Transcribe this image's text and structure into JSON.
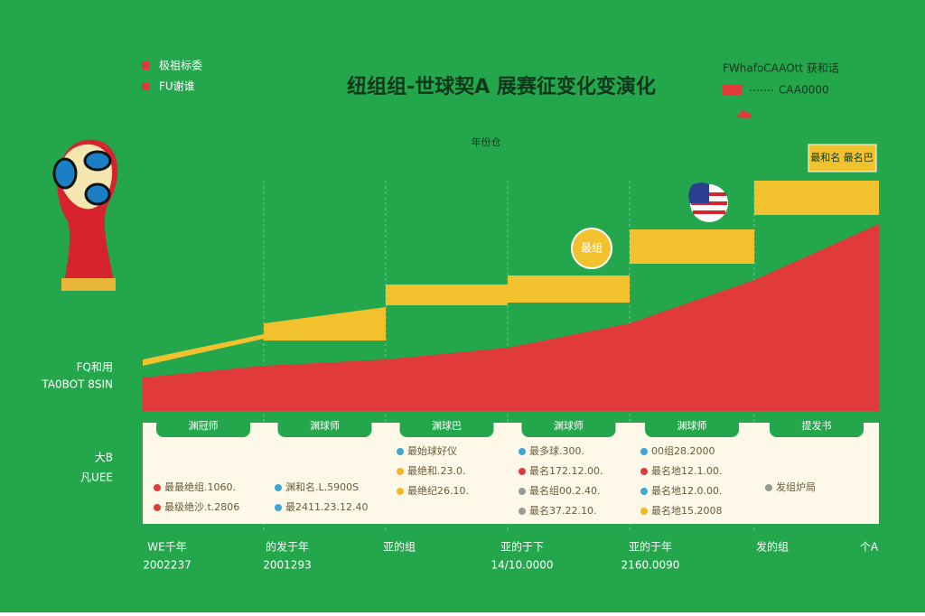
{
  "header": {
    "title": "纽组组-世球契A 展赛征变化变演化",
    "legend": [
      "极祖标委",
      "FU谢谁"
    ],
    "right_legend": {
      "title": "FWhafoCAAOtt 获和话",
      "value": "CAA0000"
    }
  },
  "axis_label": "年份仓",
  "left_labels": [
    "FQ和用",
    "TA0BOT 8SIN"
  ],
  "table_side": [
    "大B",
    "凡UEE"
  ],
  "badge": "最和名 最名巴",
  "coin": "最组",
  "columns": [
    {
      "header": "渊冠师",
      "items": [
        {
          "text": "最最绝组.1060.",
          "color": "#e03a3a"
        },
        {
          "text": "最级绝沙.t.2806",
          "color": "#e03a3a"
        }
      ]
    },
    {
      "header": "渊球师",
      "items": [
        {
          "text": "渊和名.L.5900S",
          "color": "#3ea6d8"
        },
        {
          "text": "最2411.23.12.40",
          "color": "#3ea6d8"
        }
      ]
    },
    {
      "header": "渊球巴",
      "items": [
        {
          "text": "最始球好仪",
          "color": "#3ea6d8"
        },
        {
          "text": "最绝和.23.0.",
          "color": "#f2b824"
        },
        {
          "text": "最绝纪26.10.",
          "color": "#f2b824"
        }
      ]
    },
    {
      "header": "渊球师",
      "items": [
        {
          "text": "最多球.300.",
          "color": "#3ea6d8"
        },
        {
          "text": "最名172.12.00.",
          "color": "#e03a3a"
        },
        {
          "text": "最名组00.2.40.",
          "color": "#999999"
        },
        {
          "text": "最名37.22.10.",
          "color": "#999999"
        }
      ]
    },
    {
      "header": "渊球师",
      "items": [
        {
          "text": "00组28.2000",
          "color": "#3ea6d8"
        },
        {
          "text": "最名地12.1.00.",
          "color": "#e03a3a"
        },
        {
          "text": "最名地12.0.00.",
          "color": "#3ea6d8"
        },
        {
          "text": "最名地15.2008",
          "color": "#f2b824"
        }
      ]
    },
    {
      "header": "提发书",
      "items": [
        {
          "text": "发组炉局",
          "color": "#999999"
        }
      ]
    }
  ],
  "bottom": [
    {
      "label": "WE千年",
      "value": "2002237"
    },
    {
      "label": "的发于年",
      "value": "2001293"
    },
    {
      "label": "亚的组"
    },
    {
      "label": "亚的于下",
      "value": "14/10.0000"
    },
    {
      "label": "亚的于年",
      "value": "2160.0090"
    },
    {
      "label": "发的组"
    },
    {
      "label": "个A"
    }
  ]
}
